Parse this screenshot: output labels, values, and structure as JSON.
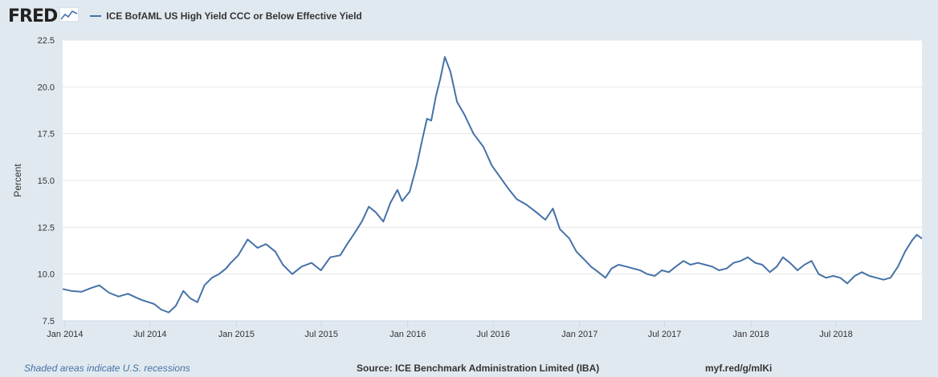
{
  "brand": {
    "logo": "FRED"
  },
  "footer": {
    "recessions_note": "Shaded areas indicate U.S. recessions",
    "source": "Source: ICE Benchmark Administration Limited (IBA)",
    "shortlink": "myf.red/g/mlKi"
  },
  "colors": {
    "series": "#4572a7",
    "background": "#e1e9f0",
    "plot_bg": "#ffffff",
    "grid": "#e6e6e6"
  },
  "chart_data": {
    "type": "line",
    "title": "",
    "xlabel": "",
    "ylabel": "Percent",
    "ylim": [
      7.5,
      22.5
    ],
    "yticks": [
      "7.5",
      "10.0",
      "12.5",
      "15.0",
      "17.5",
      "20.0",
      "22.5"
    ],
    "xlim": [
      "2013-12-27",
      "2018-12-31"
    ],
    "xticks": [
      {
        "date": "2014-01-01",
        "label": "Jan 2014"
      },
      {
        "date": "2014-07-01",
        "label": "Jul 2014"
      },
      {
        "date": "2015-01-01",
        "label": "Jan 2015"
      },
      {
        "date": "2015-07-01",
        "label": "Jul 2015"
      },
      {
        "date": "2016-01-01",
        "label": "Jan 2016"
      },
      {
        "date": "2016-07-01",
        "label": "Jul 2016"
      },
      {
        "date": "2017-01-01",
        "label": "Jan 2017"
      },
      {
        "date": "2017-07-01",
        "label": "Jul 2017"
      },
      {
        "date": "2018-01-01",
        "label": "Jan 2018"
      },
      {
        "date": "2018-07-01",
        "label": "Jul 2018"
      }
    ],
    "grid": true,
    "legend": "top-left",
    "series": [
      {
        "name": "ICE BofAML US High Yield CCC or Below Effective Yield",
        "color": "#4572a7",
        "x": [
          "2013-12-27",
          "2014-01-15",
          "2014-02-05",
          "2014-02-25",
          "2014-03-15",
          "2014-04-05",
          "2014-04-25",
          "2014-05-15",
          "2014-06-01",
          "2014-06-15",
          "2014-06-28",
          "2014-07-10",
          "2014-07-25",
          "2014-08-10",
          "2014-08-25",
          "2014-09-10",
          "2014-09-25",
          "2014-10-10",
          "2014-10-25",
          "2014-11-10",
          "2014-11-25",
          "2014-12-10",
          "2014-12-20",
          "2015-01-05",
          "2015-01-25",
          "2015-02-15",
          "2015-03-05",
          "2015-03-25",
          "2015-04-10",
          "2015-04-30",
          "2015-05-20",
          "2015-06-10",
          "2015-06-30",
          "2015-07-20",
          "2015-08-10",
          "2015-08-25",
          "2015-09-10",
          "2015-09-25",
          "2015-10-10",
          "2015-10-25",
          "2015-11-10",
          "2015-11-25",
          "2015-12-10",
          "2015-12-20",
          "2016-01-05",
          "2016-01-20",
          "2016-02-01",
          "2016-02-11",
          "2016-02-20",
          "2016-03-01",
          "2016-03-10",
          "2016-03-20",
          "2016-04-01",
          "2016-04-15",
          "2016-05-01",
          "2016-05-20",
          "2016-06-10",
          "2016-06-28",
          "2016-07-15",
          "2016-08-01",
          "2016-08-20",
          "2016-09-10",
          "2016-10-01",
          "2016-10-20",
          "2016-11-05",
          "2016-11-20",
          "2016-12-10",
          "2016-12-25",
          "2017-01-10",
          "2017-01-25",
          "2017-02-10",
          "2017-02-25",
          "2017-03-10",
          "2017-03-25",
          "2017-04-10",
          "2017-04-25",
          "2017-05-10",
          "2017-05-25",
          "2017-06-10",
          "2017-06-25",
          "2017-07-10",
          "2017-07-25",
          "2017-08-10",
          "2017-08-25",
          "2017-09-10",
          "2017-09-25",
          "2017-10-10",
          "2017-10-25",
          "2017-11-10",
          "2017-11-25",
          "2017-12-10",
          "2017-12-25",
          "2018-01-10",
          "2018-01-25",
          "2018-02-10",
          "2018-02-25",
          "2018-03-10",
          "2018-03-25",
          "2018-04-10",
          "2018-04-25",
          "2018-05-10",
          "2018-05-25",
          "2018-06-10",
          "2018-06-25",
          "2018-07-10",
          "2018-07-25",
          "2018-08-10",
          "2018-08-25",
          "2018-09-10",
          "2018-09-25",
          "2018-10-10",
          "2018-10-25",
          "2018-11-10",
          "2018-11-25",
          "2018-12-10",
          "2018-12-20",
          "2018-12-31"
        ],
        "values": [
          9.2,
          9.1,
          9.05,
          9.25,
          9.4,
          9.0,
          8.8,
          8.95,
          8.75,
          8.6,
          8.5,
          8.4,
          8.1,
          7.95,
          8.3,
          9.1,
          8.7,
          8.5,
          9.4,
          9.8,
          10.0,
          10.3,
          10.6,
          11.0,
          11.85,
          11.4,
          11.6,
          11.2,
          10.5,
          10.0,
          10.4,
          10.6,
          10.2,
          10.9,
          11.0,
          11.6,
          12.2,
          12.8,
          13.6,
          13.3,
          12.8,
          13.8,
          14.5,
          13.9,
          14.4,
          15.8,
          17.2,
          18.3,
          18.2,
          19.5,
          20.4,
          21.6,
          20.8,
          19.2,
          18.5,
          17.5,
          16.8,
          15.8,
          15.2,
          14.6,
          14.0,
          13.7,
          13.3,
          12.9,
          13.5,
          12.4,
          11.9,
          11.2,
          10.8,
          10.4,
          10.1,
          9.8,
          10.3,
          10.5,
          10.4,
          10.3,
          10.2,
          10.0,
          9.9,
          10.2,
          10.1,
          10.4,
          10.7,
          10.5,
          10.6,
          10.5,
          10.4,
          10.2,
          10.3,
          10.6,
          10.7,
          10.9,
          10.6,
          10.5,
          10.1,
          10.4,
          10.9,
          10.6,
          10.2,
          10.5,
          10.7,
          10.0,
          9.8,
          9.9,
          9.8,
          9.5,
          9.9,
          10.1,
          9.9,
          9.8,
          9.7,
          9.8,
          10.4,
          11.2,
          11.8,
          12.1,
          11.9
        ]
      }
    ]
  }
}
